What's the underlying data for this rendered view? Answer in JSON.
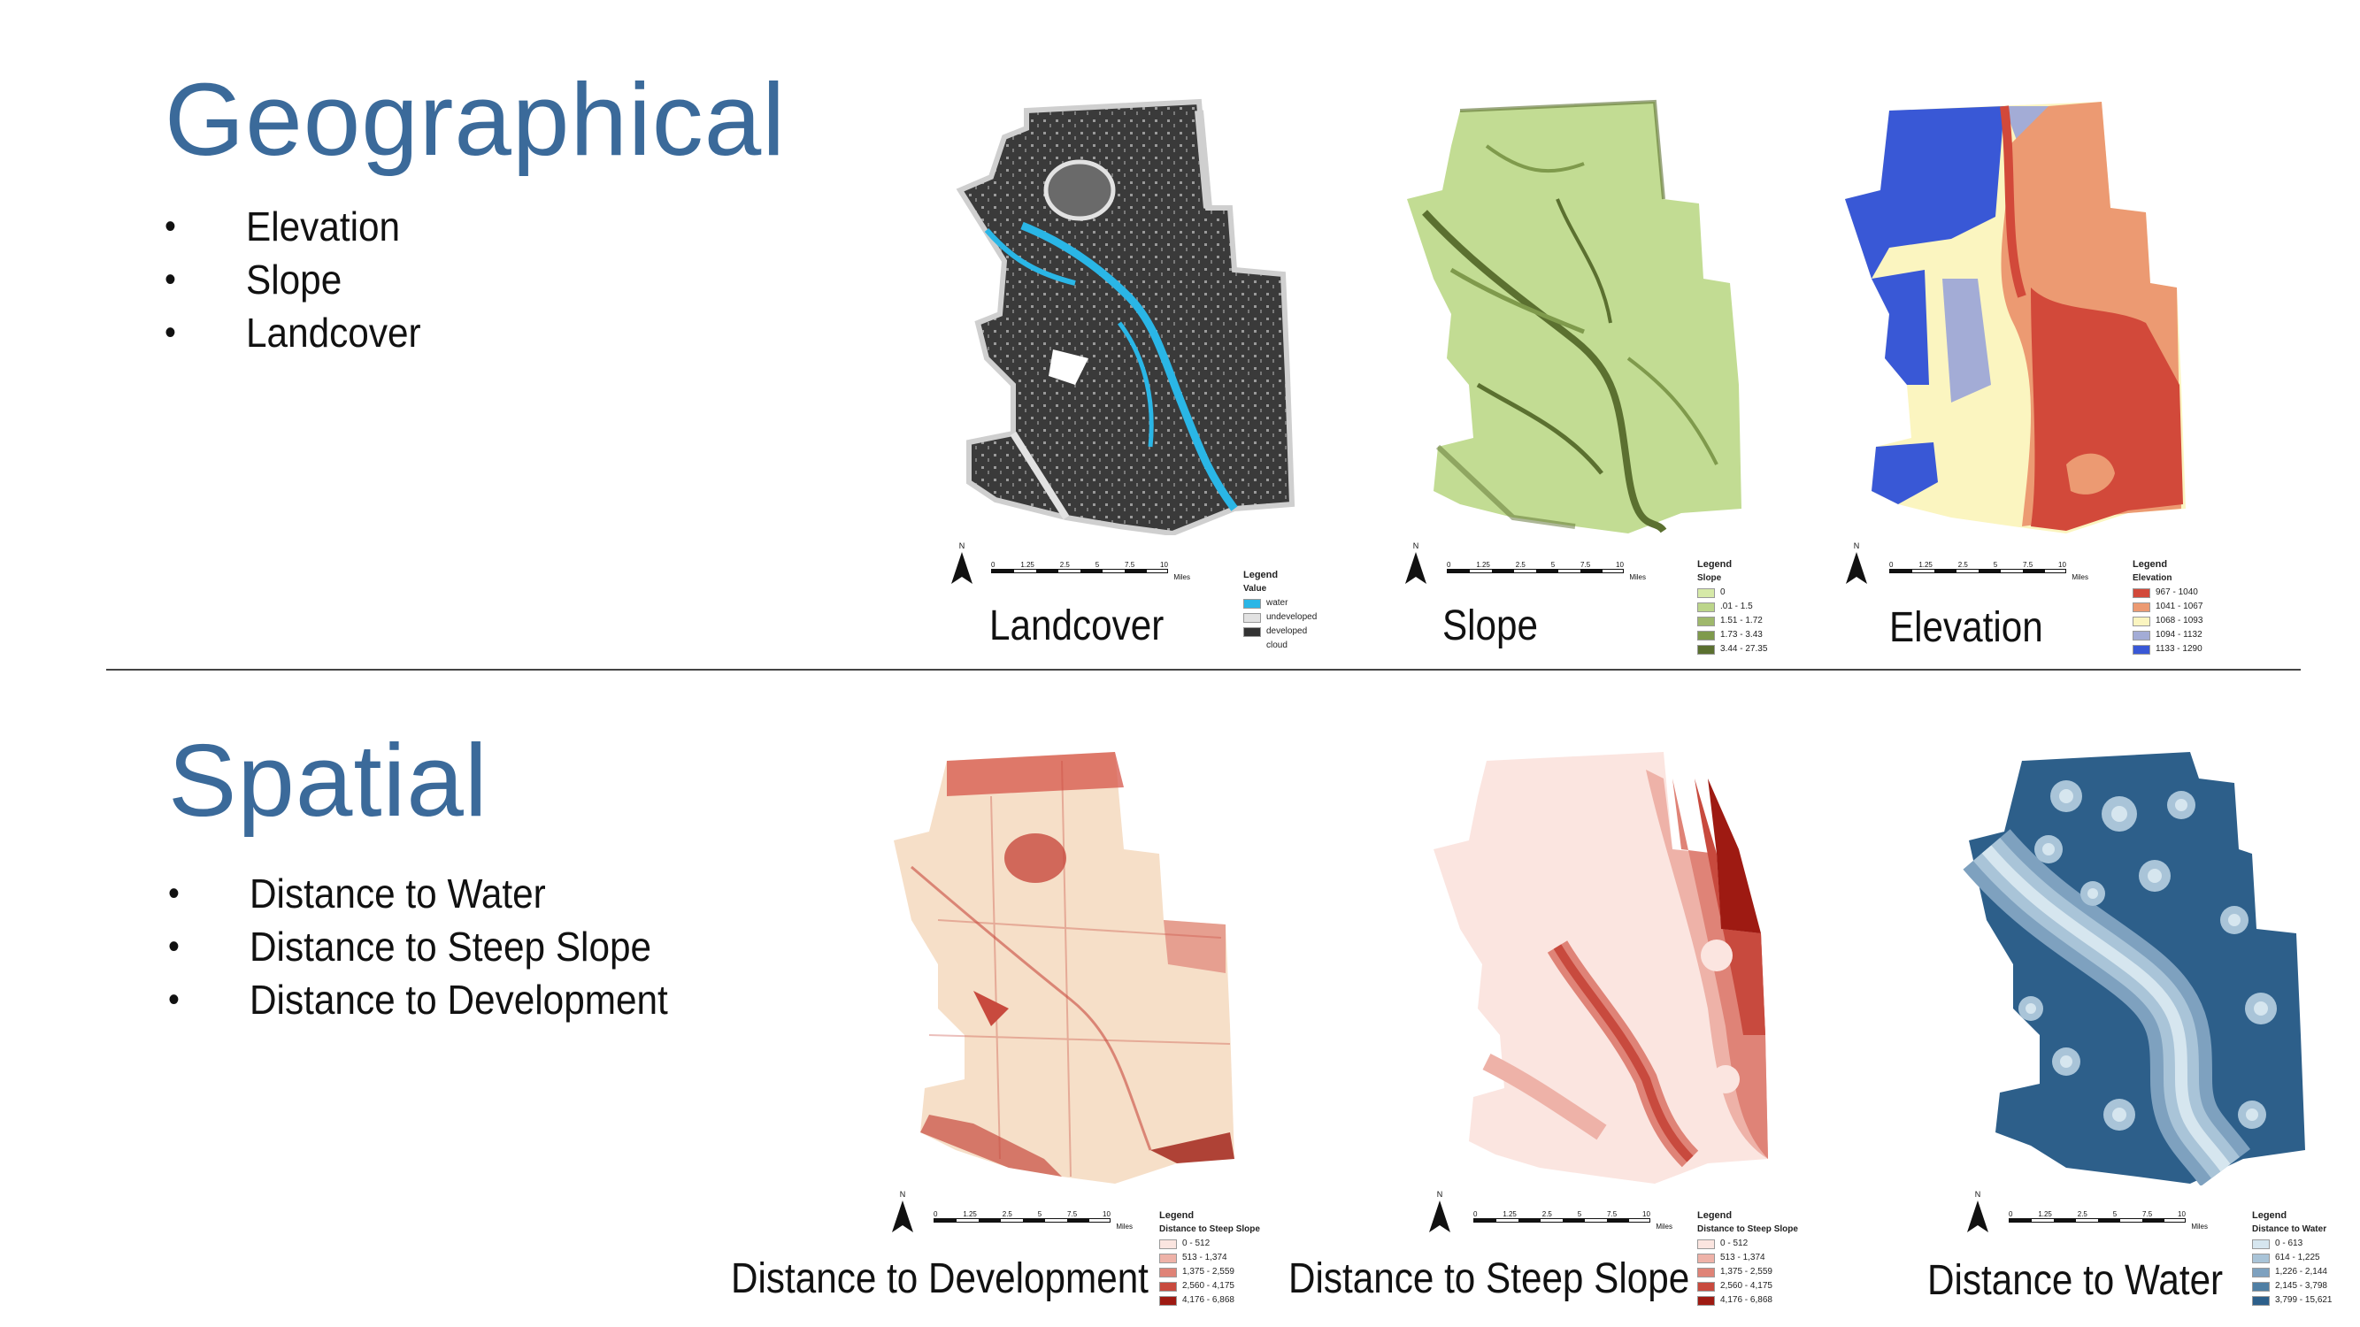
{
  "geographical": {
    "title": "Geographical",
    "bullets": [
      "Elevation",
      "Slope",
      "Landcover"
    ]
  },
  "spatial": {
    "title": "Spatial",
    "bullets": [
      "Distance to Water",
      "Distance to Steep Slope",
      "Distance to Development"
    ]
  },
  "scale": {
    "north": "N",
    "ticks": [
      "0",
      "1.25",
      "2.5",
      "5",
      "7.5",
      "10"
    ],
    "unit": "Miles"
  },
  "maps": {
    "landcover": {
      "caption": "Landcover",
      "legend": {
        "title": "Legend",
        "subtitle": "Value",
        "items": [
          {
            "label": "water",
            "color": "#2ab6e6"
          },
          {
            "label": "undeveloped",
            "color": "#e2e2e2"
          },
          {
            "label": "developed",
            "color": "#333333"
          },
          {
            "label": "cloud",
            "color": "#ffffff"
          }
        ]
      }
    },
    "slope": {
      "caption": "Slope",
      "legend": {
        "title": "Legend",
        "subtitle": "Slope",
        "items": [
          {
            "label": "0",
            "color": "#d6e9a8"
          },
          {
            "label": ".01 - 1.5",
            "color": "#bcd58a"
          },
          {
            "label": "1.51 - 1.72",
            "color": "#9fb86c"
          },
          {
            "label": "1.73 - 3.43",
            "color": "#7f9a4c"
          },
          {
            "label": "3.44 - 27.35",
            "color": "#5b7030"
          }
        ]
      }
    },
    "elevation": {
      "caption": "Elevation",
      "legend": {
        "title": "Legend",
        "subtitle": "Elevation",
        "items": [
          {
            "label": "967 - 1040",
            "color": "#d2493a"
          },
          {
            "label": "1041 - 1067",
            "color": "#ec9a72"
          },
          {
            "label": "1068 - 1093",
            "color": "#fbf5c0"
          },
          {
            "label": "1094 - 1132",
            "color": "#a3acd6"
          },
          {
            "label": "1133 - 1290",
            "color": "#3958d6"
          }
        ]
      }
    },
    "dist_development": {
      "caption": "Distance to Development",
      "legend": {
        "title": "Legend",
        "subtitle": "Distance to Steep Slope",
        "items": [
          {
            "label": "0 - 512",
            "color": "#fbe5e0"
          },
          {
            "label": "513 - 1,374",
            "color": "#eeb2a8"
          },
          {
            "label": "1,375 - 2,559",
            "color": "#df8377"
          },
          {
            "label": "2,560 - 4,175",
            "color": "#c84a3e"
          },
          {
            "label": "4,176 - 6,868",
            "color": "#9e1a12"
          }
        ]
      }
    },
    "dist_steep": {
      "caption": "Distance to Steep Slope",
      "legend": {
        "title": "Legend",
        "subtitle": "Distance to Steep Slope",
        "items": [
          {
            "label": "0 - 512",
            "color": "#fbe5e0"
          },
          {
            "label": "513 - 1,374",
            "color": "#eeb2a8"
          },
          {
            "label": "1,375 - 2,559",
            "color": "#df8377"
          },
          {
            "label": "2,560 - 4,175",
            "color": "#c84a3e"
          },
          {
            "label": "4,176 - 6,868",
            "color": "#9e1a12"
          }
        ]
      }
    },
    "dist_water": {
      "caption": "Distance to Water",
      "legend": {
        "title": "Legend",
        "subtitle": "Distance to Water",
        "items": [
          {
            "label": "0 - 613",
            "color": "#d6e6ef"
          },
          {
            "label": "614 - 1,225",
            "color": "#a9c4d8"
          },
          {
            "label": "1,226 - 2,144",
            "color": "#7ea1bf"
          },
          {
            "label": "2,145 - 3,798",
            "color": "#4f7fa4"
          },
          {
            "label": "3,799 - 15,621",
            "color": "#2d5f8a"
          }
        ]
      }
    }
  }
}
